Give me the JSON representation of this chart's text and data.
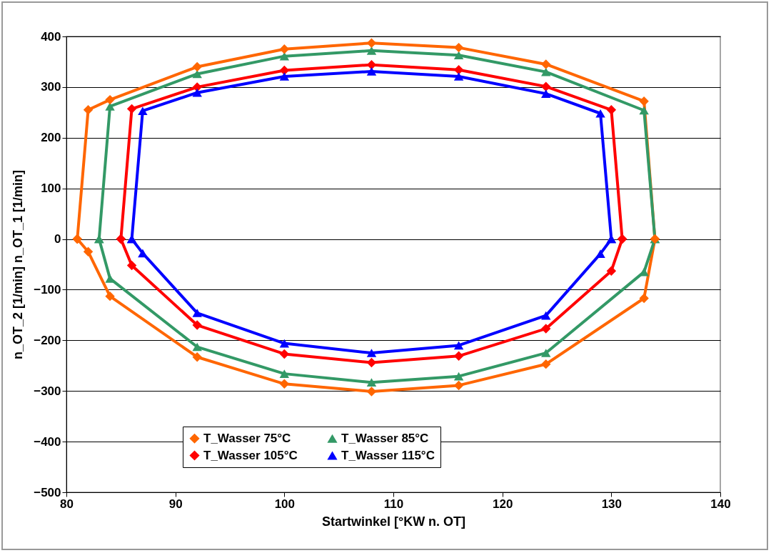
{
  "chart_data": {
    "type": "line",
    "xlabel": "Startwinkel  [°KW n. OT]",
    "ylabel": "n_OT_2 [1/min]      n_OT_1 [1/min]",
    "xlim": [
      80,
      140
    ],
    "xticks": [
      80,
      90,
      100,
      110,
      120,
      130,
      140
    ],
    "ylim": [
      -500,
      400
    ],
    "yticks": [
      -500,
      -400,
      -300,
      -200,
      -100,
      0,
      100,
      200,
      300,
      400
    ],
    "grid": "y",
    "legend": "bottom",
    "series": [
      {
        "name": "T_Wasser 75°C",
        "color": "#ff6600",
        "marker": "diamond",
        "x": [
          81,
          82,
          84,
          92,
          100,
          108,
          116,
          124,
          133,
          134
        ],
        "values": [
          0,
          255,
          275,
          340,
          375,
          387,
          378,
          345,
          272,
          0
        ]
      },
      {
        "name": "T_Wasser 85°C",
        "color": "#339966",
        "marker": "triangle",
        "x": [
          83,
          84,
          92,
          100,
          108,
          116,
          124,
          133,
          134
        ],
        "values": [
          0,
          262,
          326,
          361,
          372,
          363,
          330,
          254,
          0
        ]
      },
      {
        "name": "T_Wasser 105°C",
        "color": "#ff0000",
        "marker": "diamond",
        "x": [
          85,
          86,
          92,
          100,
          108,
          116,
          124,
          130,
          131
        ],
        "values": [
          0,
          257,
          300,
          333,
          344,
          334,
          301,
          255,
          0
        ]
      },
      {
        "name": "T_Wasser 115°C",
        "color": "#0000ff",
        "marker": "triangle",
        "x": [
          86,
          87,
          92,
          100,
          108,
          116,
          124,
          129,
          130
        ],
        "values": [
          0,
          253,
          289,
          321,
          331,
          321,
          287,
          248,
          0
        ]
      },
      {
        "color": "#ff6600",
        "marker": "diamond",
        "x": [
          81,
          82,
          84,
          92,
          100,
          108,
          116,
          124,
          133,
          134
        ],
        "values": [
          0,
          -25,
          -113,
          -233,
          -286,
          -301,
          -289,
          -247,
          -117,
          0
        ]
      },
      {
        "color": "#339966",
        "marker": "triangle",
        "x": [
          83,
          84,
          92,
          100,
          108,
          116,
          124,
          133,
          134
        ],
        "values": [
          0,
          -78,
          -213,
          -266,
          -283,
          -271,
          -225,
          -65,
          0
        ]
      },
      {
        "color": "#ff0000",
        "marker": "diamond",
        "x": [
          85,
          86,
          92,
          100,
          108,
          116,
          124,
          130,
          131
        ],
        "values": [
          0,
          -52,
          -170,
          -227,
          -244,
          -231,
          -177,
          -63,
          0
        ]
      },
      {
        "color": "#0000ff",
        "marker": "triangle",
        "x": [
          86,
          87,
          92,
          100,
          108,
          116,
          124,
          129,
          130
        ],
        "values": [
          0,
          -28,
          -146,
          -206,
          -225,
          -210,
          -151,
          -29,
          0
        ]
      }
    ]
  }
}
